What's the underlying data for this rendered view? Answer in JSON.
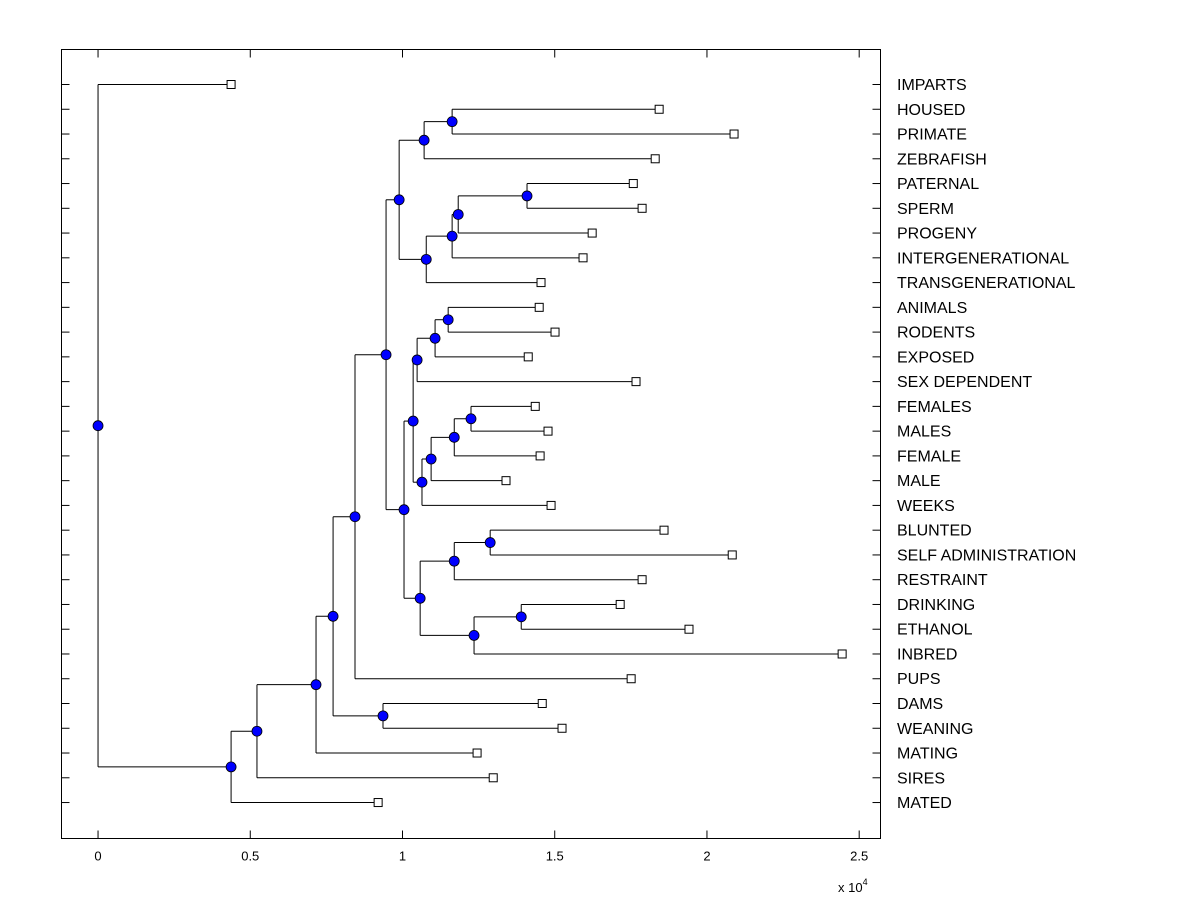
{
  "chart_data": {
    "type": "dendrogram",
    "orientation": "horizontal",
    "xlim": [
      -0.12,
      2.57
    ],
    "xticks": [
      0,
      0.5,
      1,
      1.5,
      2,
      2.5
    ],
    "xtick_labels": [
      "0",
      "0.5",
      "1",
      "1.5",
      "2",
      "2.5"
    ],
    "x_multiplier_label": "x 10",
    "x_multiplier_exp": "4",
    "colors": {
      "node": "#0000ff",
      "line": "#000000",
      "leaf": "#ffffff"
    },
    "tree": {
      "x": 0,
      "children": [
        {
          "label": "IMPARTS",
          "x": 0.437
        },
        {
          "x": 0.437,
          "children": [
            {
              "x": 0.522,
              "children": [
                {
                  "x": 0.716,
                  "children": [
                    {
                      "x": 0.772,
                      "children": [
                        {
                          "x": 0.844,
                          "children": [
                            {
                              "x": 0.946,
                              "children": [
                                {
                                  "x": 0.989,
                                  "children": [
                                    {
                                      "x": 1.071,
                                      "children": [
                                        {
                                          "x": 1.163,
                                          "children": [
                                            {
                                              "label": "HOUSED",
                                              "x": 1.843
                                            },
                                            {
                                              "label": "PRIMATE",
                                              "x": 2.089
                                            }
                                          ]
                                        },
                                        {
                                          "label": "ZEBRAFISH",
                                          "x": 1.83
                                        }
                                      ]
                                    },
                                    {
                                      "x": 1.078,
                                      "children": [
                                        {
                                          "x": 1.163,
                                          "children": [
                                            {
                                              "x": 1.183,
                                              "children": [
                                                {
                                                  "x": 1.409,
                                                  "children": [
                                                    {
                                                      "label": "PATERNAL",
                                                      "x": 1.758
                                                    },
                                                    {
                                                      "label": "SPERM",
                                                      "x": 1.787
                                                    }
                                                  ]
                                                },
                                                {
                                                  "label": "PROGENY",
                                                  "x": 1.623
                                                }
                                              ]
                                            },
                                            {
                                              "label": "INTERGENERATIONAL",
                                              "x": 1.593
                                            }
                                          ]
                                        },
                                        {
                                          "label": "TRANSGENERATIONAL",
                                          "x": 1.455
                                        }
                                      ]
                                    }
                                  ]
                                },
                                {
                                  "x": 1.005,
                                  "children": [
                                    {
                                      "x": 1.035,
                                      "children": [
                                        {
                                          "x": 1.048,
                                          "children": [
                                            {
                                              "x": 1.107,
                                              "children": [
                                                {
                                                  "x": 1.15,
                                                  "children": [
                                                    {
                                                      "label": "ANIMALS",
                                                      "x": 1.449
                                                    },
                                                    {
                                                      "label": "RODENTS",
                                                      "x": 1.501
                                                    }
                                                  ]
                                                },
                                                {
                                                  "label": "EXPOSED",
                                                  "x": 1.413
                                                }
                                              ]
                                            },
                                            {
                                              "label": "SEX DEPENDENT",
                                              "x": 1.767
                                            }
                                          ]
                                        },
                                        {
                                          "x": 1.064,
                                          "children": [
                                            {
                                              "x": 1.094,
                                              "children": [
                                                {
                                                  "x": 1.17,
                                                  "children": [
                                                    {
                                                      "x": 1.225,
                                                      "children": [
                                                        {
                                                          "label": "FEMALES",
                                                          "x": 1.436
                                                        },
                                                        {
                                                          "label": "MALES",
                                                          "x": 1.478
                                                        }
                                                      ]
                                                    },
                                                    {
                                                      "label": "FEMALE",
                                                      "x": 1.452
                                                    }
                                                  ]
                                                },
                                                {
                                                  "label": "MALE",
                                                  "x": 1.34
                                                }
                                              ]
                                            },
                                            {
                                              "label": "WEEKS",
                                              "x": 1.488
                                            }
                                          ]
                                        }
                                      ]
                                    },
                                    {
                                      "x": 1.058,
                                      "children": [
                                        {
                                          "x": 1.17,
                                          "children": [
                                            {
                                              "x": 1.288,
                                              "children": [
                                                {
                                                  "label": "BLUNTED",
                                                  "x": 1.859
                                                },
                                                {
                                                  "label": "SELF ADMINISTRATION",
                                                  "x": 2.083
                                                }
                                              ]
                                            },
                                            {
                                              "label": "RESTRAINT",
                                              "x": 1.787
                                            }
                                          ]
                                        },
                                        {
                                          "x": 1.235,
                                          "children": [
                                            {
                                              "x": 1.39,
                                              "children": [
                                                {
                                                  "label": "DRINKING",
                                                  "x": 1.715
                                                },
                                                {
                                                  "label": "ETHANOL",
                                                  "x": 1.941
                                                }
                                              ]
                                            },
                                            {
                                              "label": "INBRED",
                                              "x": 2.444
                                            }
                                          ]
                                        }
                                      ]
                                    }
                                  ]
                                }
                              ]
                            },
                            {
                              "label": "PUPS",
                              "x": 1.751
                            }
                          ]
                        },
                        {
                          "x": 0.936,
                          "children": [
                            {
                              "label": "DAMS",
                              "x": 1.459
                            },
                            {
                              "label": "WEANING",
                              "x": 1.524
                            }
                          ]
                        }
                      ]
                    },
                    {
                      "label": "MATING",
                      "x": 1.245
                    }
                  ]
                },
                {
                  "label": "SIRES",
                  "x": 1.298
                }
              ]
            },
            {
              "label": "MATED",
              "x": 0.92
            }
          ]
        }
      ]
    }
  }
}
